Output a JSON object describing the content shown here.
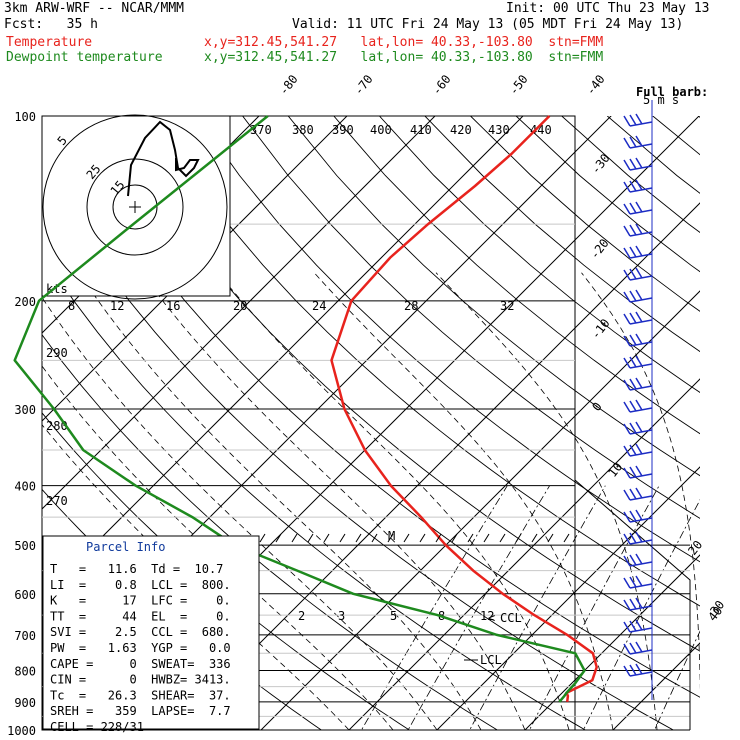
{
  "header": {
    "line1_left": "3km ARW-WRF -- NCAR/MMM",
    "line1_right": "Init: 00 UTC Thu 23 May 13",
    "line2_left": "Fcst:   35 h",
    "line2_right": "Valid: 11 UTC Fri 24 May 13 (05 MDT Fri 24 May 13)",
    "temp_label": "Temperature",
    "temp_info": "x,y=312.45,541.27   lat,lon= 40.33,-103.80  stn=FMM",
    "dew_label": "Dewpoint temperature",
    "dew_info": "x,y=312.45,541.27   lat,lon= 40.33,-103.80  stn=FMM"
  },
  "colors": {
    "temperature": "#e8231d",
    "dewpoint": "#1e8a1e",
    "isotherm": "#000000",
    "panel_title": "#103a9c",
    "barb": "#1c2cc4"
  },
  "chart_data": {
    "type": "line",
    "title": "",
    "xlabel": "",
    "ylabel": "",
    "pressure_levels": [
      "100",
      "200",
      "300",
      "400",
      "500",
      "600",
      "700",
      "800",
      "900",
      "1000"
    ],
    "pressure_values": [
      100,
      200,
      300,
      400,
      500,
      600,
      700,
      800,
      900,
      1000
    ],
    "temperature_ticks": [
      "-80",
      "-70",
      "-60",
      "-50",
      "-40",
      "-30",
      "-20",
      "-10",
      "0",
      "10",
      "20",
      "30",
      "40"
    ],
    "theta_labels": [
      "370",
      "380",
      "390",
      "400",
      "410",
      "420",
      "430",
      "440"
    ],
    "mixing_ratio_top": [
      "8",
      "12",
      "16",
      "20",
      "24",
      "28",
      "32"
    ],
    "mixing_ratio_bottom": [
      "2",
      "3",
      "5",
      "8",
      "12"
    ],
    "theta_side_labels": [
      "290",
      "280",
      "270"
    ],
    "series": [
      {
        "name": "Temperature",
        "points": [
          [
            100,
            -57
          ],
          [
            115,
            -57
          ],
          [
            130,
            -57.5
          ],
          [
            150,
            -58.5
          ],
          [
            170,
            -59
          ],
          [
            200,
            -58.5
          ],
          [
            250,
            -54
          ],
          [
            300,
            -47
          ],
          [
            350,
            -40
          ],
          [
            400,
            -33
          ],
          [
            450,
            -26
          ],
          [
            500,
            -20
          ],
          [
            550,
            -14
          ],
          [
            600,
            -8
          ],
          [
            650,
            -2
          ],
          [
            700,
            4
          ],
          [
            750,
            9
          ],
          [
            790,
            11
          ],
          [
            830,
            12
          ],
          [
            870,
            10.5
          ],
          [
            880,
            11
          ],
          [
            900,
            11.6
          ]
        ]
      },
      {
        "name": "Dewpoint temperature",
        "points": [
          [
            100,
            -89
          ],
          [
            150,
            -92
          ],
          [
            200,
            -94
          ],
          [
            250,
            -90
          ],
          [
            300,
            -80
          ],
          [
            350,
            -72
          ],
          [
            400,
            -62
          ],
          [
            450,
            -52
          ],
          [
            500,
            -44
          ],
          [
            550,
            -34
          ],
          [
            600,
            -25
          ],
          [
            650,
            -13
          ],
          [
            700,
            -4
          ],
          [
            750,
            7
          ],
          [
            800,
            10
          ],
          [
            840,
            10.4
          ],
          [
            870,
            10.5
          ],
          [
            880,
            10.6
          ],
          [
            900,
            10.7
          ]
        ]
      }
    ],
    "annotations": [
      "CCL",
      "LCL",
      "M"
    ],
    "barb_label": "Full barb:",
    "barb_unit": "5 m s",
    "hodograph": {
      "rings": [
        "5",
        "25",
        "15"
      ],
      "kts_label": "kts"
    }
  },
  "parcel": {
    "title": "Parcel Info",
    "rows": [
      "T   =   11.6  Td =  10.7",
      "LI  =    0.8  LCL =  800.",
      "K   =     17  LFC =    0.",
      "TT  =     44  EL  =    0.",
      "SVI =    2.5  CCL =  680.",
      "PW  =   1.63  YGP =   0.0",
      "CAPE =     0  SWEAT=  336",
      "CIN =      0  HWBZ= 3413.",
      "Tc  =   26.3  SHEAR=  37.",
      "SREH =   359  LAPSE=  7.7",
      "CELL = 228/31"
    ]
  }
}
